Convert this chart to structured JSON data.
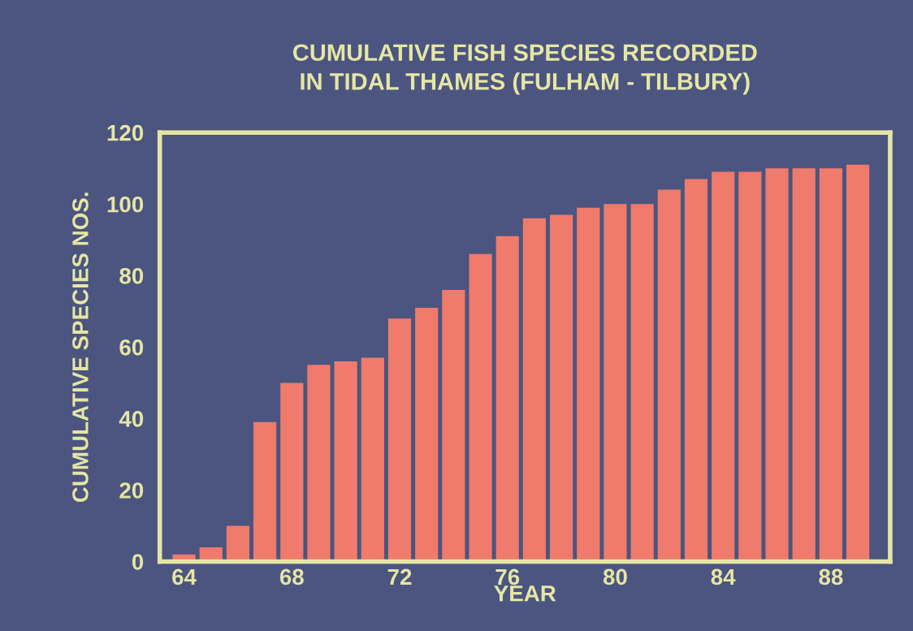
{
  "chart_data": {
    "type": "bar",
    "title": "CUMULATIVE FISH SPECIES RECORDED\nIN TIDAL THAMES (FULHAM - TILBURY)",
    "xlabel": "YEAR",
    "ylabel": "CUMULATIVE SPECIES NOS.",
    "x": [
      64,
      65,
      66,
      67,
      68,
      69,
      70,
      71,
      72,
      73,
      74,
      75,
      76,
      77,
      78,
      79,
      80,
      81,
      82,
      83,
      84,
      85,
      86,
      87,
      88,
      89
    ],
    "values": [
      2,
      4,
      10,
      39,
      50,
      55,
      56,
      57,
      68,
      71,
      76,
      86,
      91,
      96,
      97,
      99,
      100,
      100,
      104,
      107,
      109,
      109,
      110,
      110,
      110,
      111
    ],
    "color": "#f07a6c",
    "xlim": [
      63.1,
      90.2
    ],
    "xticks": [
      64,
      68,
      72,
      76,
      80,
      84,
      88
    ],
    "ylim": [
      0,
      120
    ],
    "yticks": [
      0,
      20,
      40,
      60,
      80,
      100,
      120
    ],
    "grid": false
  }
}
